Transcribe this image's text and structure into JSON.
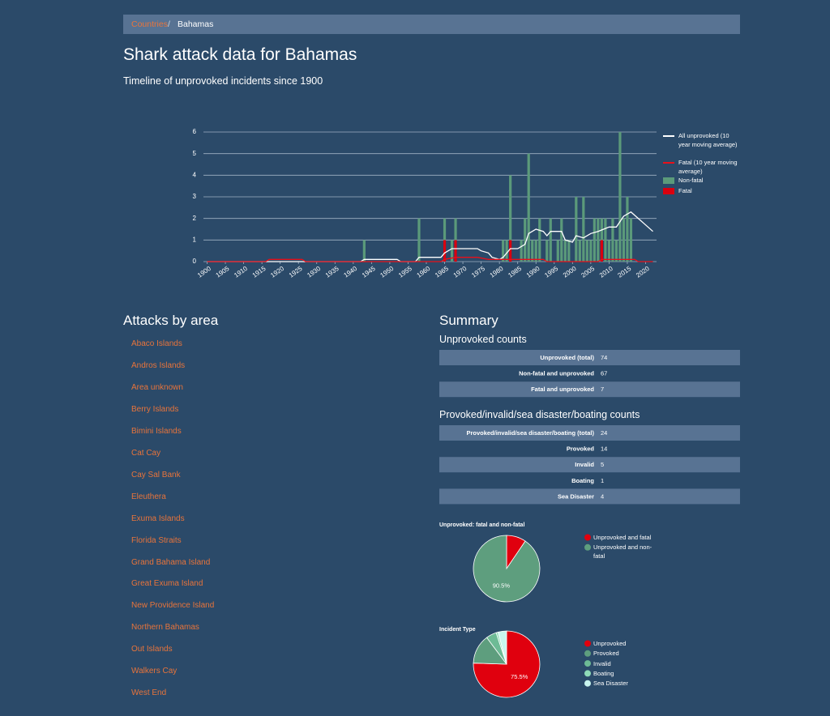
{
  "breadcrumb": {
    "parent": "Countries",
    "current": "Bahamas"
  },
  "title": "Shark attack data for Bahamas",
  "subtitle": "Timeline of unprovoked incidents since 1900",
  "areas": {
    "title": "Attacks by area",
    "items": [
      "Abaco Islands",
      "Andros Islands",
      "Area unknown",
      "Berry Islands",
      "Bimini Islands",
      "Cat Cay",
      "Cay Sal Bank",
      "Eleuthera",
      "Exuma Islands",
      "Florida Straits",
      "Grand Bahama Island",
      "Great Exuma Island",
      "New Providence Island",
      "Northern Bahamas",
      "Out Islands",
      "Walkers Cay",
      "West End"
    ]
  },
  "summary": {
    "title": "Summary",
    "tables": [
      {
        "title": "Unprovoked counts",
        "rows": [
          [
            "Unprovoked (total)",
            74
          ],
          [
            "Non-fatal and unprovoked",
            67
          ],
          [
            "Fatal and unprovoked",
            7
          ]
        ]
      },
      {
        "title": "Provoked/invalid/sea disaster/boating counts",
        "rows": [
          [
            "Provoked/invalid/sea disaster/boating (total)",
            24
          ],
          [
            "Provoked",
            14
          ],
          [
            "Invalid",
            5
          ],
          [
            "Boating",
            1
          ],
          [
            "Sea Disaster",
            4
          ]
        ]
      }
    ]
  },
  "chart_data": [
    {
      "type": "combo",
      "xlim": [
        1899,
        2023
      ],
      "ylim": [
        0,
        6
      ],
      "xticks": [
        1900,
        1905,
        1910,
        1915,
        1920,
        1925,
        1930,
        1935,
        1940,
        1945,
        1950,
        1955,
        1960,
        1965,
        1970,
        1975,
        1980,
        1985,
        1990,
        1995,
        2000,
        2005,
        2010,
        2015,
        2020
      ],
      "yticks": [
        0,
        1,
        2,
        3,
        4,
        5,
        6
      ],
      "grid": true,
      "series": [
        {
          "name": "All unprovoked (10 year moving average)",
          "type": "line",
          "color": "#ffffff",
          "x": [
            1900,
            1942,
            1943,
            1952,
            1953,
            1957,
            1958,
            1964,
            1965,
            1967,
            1974,
            1975,
            1977,
            1978,
            1980,
            1981,
            1983,
            1985,
            1987,
            1988,
            1990,
            1992,
            1993,
            1994,
            1997,
            1998,
            2000,
            2001,
            2003,
            2005,
            2007,
            2010,
            2012,
            2014,
            2016,
            2018,
            2020,
            2022
          ],
          "values": [
            0,
            0,
            0.1,
            0.1,
            0,
            0,
            0.2,
            0.2,
            0.4,
            0.6,
            0.6,
            0.5,
            0.4,
            0.2,
            0.1,
            0.2,
            0.6,
            0.6,
            0.8,
            1.3,
            1.5,
            1.4,
            1.2,
            1.4,
            1.4,
            1.0,
            0.9,
            1.2,
            1.1,
            1.3,
            1.4,
            1.6,
            1.6,
            2.1,
            2.3,
            2.0,
            1.7,
            1.4
          ]
        },
        {
          "name": "Fatal (10 year moving average)",
          "type": "line",
          "color": "#e8101a",
          "x": [
            1900,
            1916,
            1917,
            1926,
            1927,
            1964,
            1965,
            1968,
            1974,
            1977,
            1983,
            1992,
            1993,
            2007,
            2008,
            2017,
            2018,
            2022
          ],
          "values": [
            0,
            0,
            0.1,
            0.1,
            0,
            0,
            0.1,
            0.2,
            0.2,
            0.1,
            0.1,
            0.1,
            0,
            0,
            0.1,
            0.1,
            0,
            0
          ]
        },
        {
          "name": "Non-fatal",
          "type": "bar",
          "color": "#5b9a7a",
          "x": [
            1943,
            1958,
            1965,
            1967,
            1968,
            1981,
            1982,
            1983,
            1986,
            1987,
            1988,
            1989,
            1990,
            1991,
            1993,
            1994,
            1996,
            1997,
            1998,
            1999,
            2001,
            2002,
            2003,
            2004,
            2005,
            2006,
            2007,
            2008,
            2009,
            2010,
            2011,
            2012,
            2013,
            2014,
            2015,
            2016
          ],
          "values": [
            1,
            2,
            1,
            1,
            1,
            1,
            1,
            3,
            1,
            2,
            5,
            1,
            1,
            2,
            1,
            2,
            1,
            2,
            1,
            1,
            3,
            1,
            3,
            1,
            1,
            2,
            2,
            1,
            2,
            1,
            2,
            1,
            6,
            2,
            3,
            2
          ]
        },
        {
          "name": "Fatal",
          "type": "bar",
          "color": "#d9000f",
          "x": [
            1965,
            1968,
            1983,
            2008
          ],
          "values": [
            1,
            1,
            1,
            1
          ]
        }
      ]
    },
    {
      "type": "pie",
      "title": "Unprovoked: fatal and non-fatal",
      "categories": [
        "Unprovoked and fatal",
        "Unprovoked and non-fatal"
      ],
      "values": [
        9.5,
        90.5
      ],
      "value_labels": [
        null,
        "90.5%"
      ],
      "colors": [
        "#e0000e",
        "#5e9e7e"
      ]
    },
    {
      "type": "pie",
      "title": "Incident Type",
      "categories": [
        "Unprovoked",
        "Provoked",
        "Invalid",
        "Boating",
        "Sea Disaster"
      ],
      "values": [
        75.5,
        14.3,
        5.1,
        1.0,
        4.1
      ],
      "value_labels": [
        "75.5%",
        null,
        null,
        null,
        null
      ],
      "colors": [
        "#e0000e",
        "#5e9e7e",
        "#6dbb95",
        "#8fdcb8",
        "#c9f5ef"
      ]
    }
  ]
}
